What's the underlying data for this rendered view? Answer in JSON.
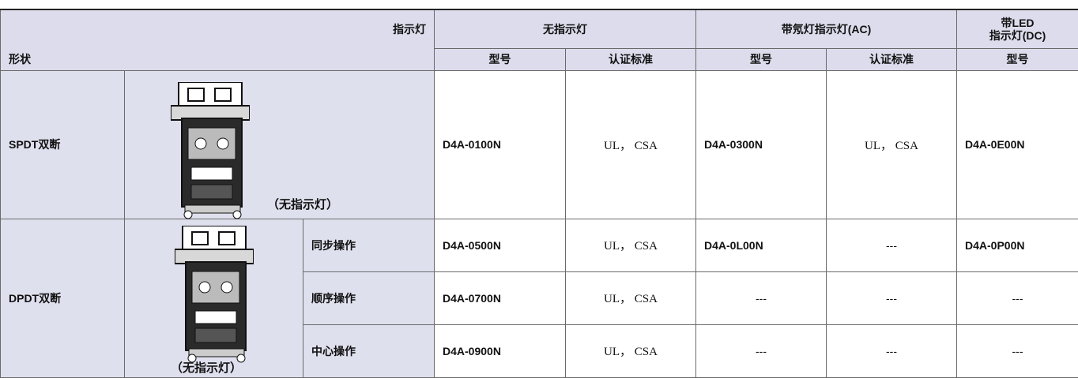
{
  "header": {
    "indicator": "指示灯",
    "shape": "形状",
    "groups": [
      "无指示灯",
      "带氖灯指示灯(AC)",
      [
        "带LED",
        "指示灯(DC)"
      ]
    ],
    "columns": [
      "型号",
      "认证标准",
      "型号",
      "认证标准",
      "型号"
    ]
  },
  "spdt": {
    "shape": "SPDT双断",
    "caption": "（无指示灯）",
    "cells": [
      "D4A-0100N",
      "UL， CSA",
      "D4A-0300N",
      "UL， CSA",
      "D4A-0E00N"
    ]
  },
  "dpdt": {
    "shape": "DPDT双断",
    "caption": "（无指示灯）",
    "rows": [
      {
        "operation": "同步操作",
        "cells": [
          "D4A-0500N",
          "UL， CSA",
          "D4A-0L00N",
          "---",
          "D4A-0P00N"
        ]
      },
      {
        "operation": "顺序操作",
        "cells": [
          "D4A-0700N",
          "UL， CSA",
          "---",
          "---",
          "---"
        ]
      },
      {
        "operation": "中心操作",
        "cells": [
          "D4A-0900N",
          "UL， CSA",
          "---",
          "---",
          "---"
        ]
      }
    ]
  }
}
